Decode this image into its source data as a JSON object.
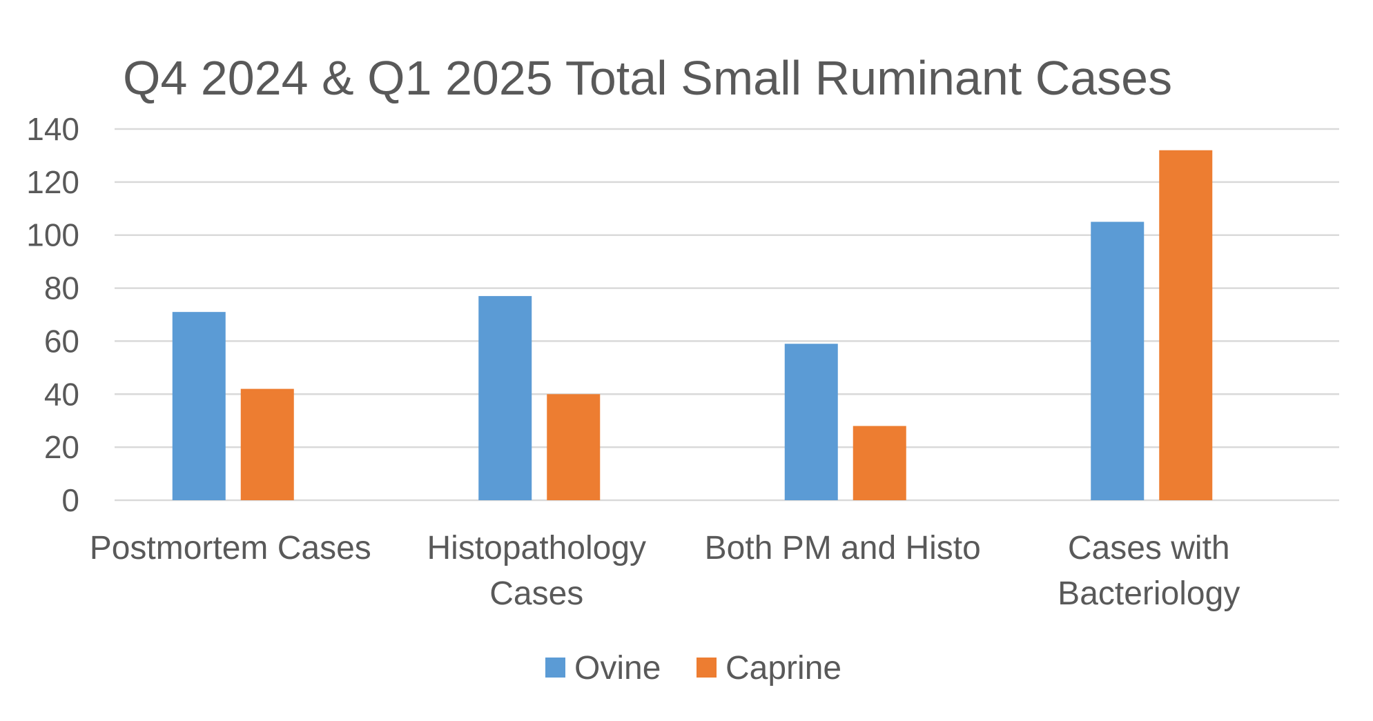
{
  "chart_data": {
    "type": "bar",
    "title": "Q4 2024 & Q1 2025 Total Small Ruminant Cases",
    "xlabel": "",
    "ylabel": "",
    "categories": [
      [
        "Postmortem Cases"
      ],
      [
        "Histopathology",
        "Cases"
      ],
      [
        "Both PM and Histo"
      ],
      [
        "Cases with",
        "Bacteriology"
      ]
    ],
    "series": [
      {
        "name": "Ovine",
        "color": "#5b9bd5",
        "values": [
          71,
          77,
          59,
          105
        ]
      },
      {
        "name": "Caprine",
        "color": "#ed7d31",
        "values": [
          42,
          40,
          28,
          132
        ]
      }
    ],
    "ylim": [
      0,
      140
    ],
    "yticks": [
      0,
      20,
      40,
      60,
      80,
      100,
      120,
      140
    ],
    "grid": true,
    "legend_position": "bottom"
  }
}
